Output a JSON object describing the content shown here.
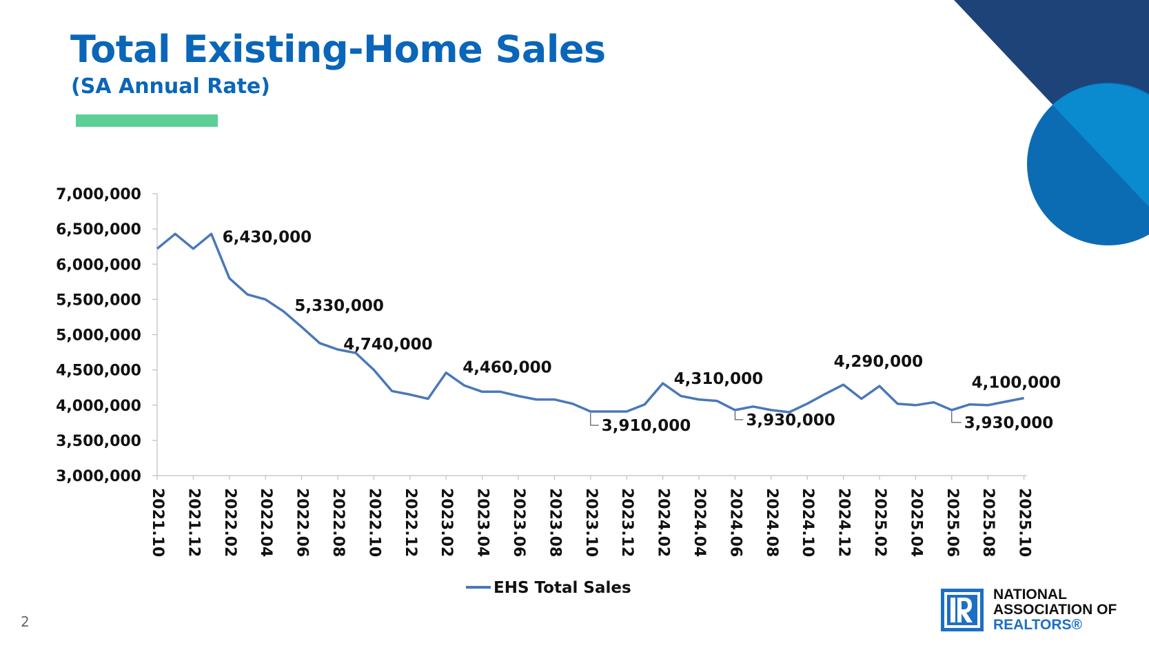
{
  "header": {
    "title": "Total Existing-Home Sales",
    "subtitle": "(SA Annual Rate)"
  },
  "footer": {
    "page_number": "2",
    "logo_line1": "NATIONAL",
    "logo_line2": "ASSOCIATION OF",
    "logo_line3": "REALTORS®"
  },
  "colors": {
    "title": "#0a66b8",
    "accent_bar": "#5ccf97",
    "series_line": "#4a78b8",
    "deco_navy": "#1d4379",
    "deco_blue": "#0c6cb3",
    "deco_light": "#0a8bd0"
  },
  "chart_data": {
    "type": "line",
    "title": "Total Existing-Home Sales",
    "subtitle": "(SA Annual Rate)",
    "xlabel": "",
    "ylabel": "",
    "ylim": [
      3000000,
      7000000
    ],
    "y_ticks": [
      3000000,
      3500000,
      4000000,
      4500000,
      5000000,
      5500000,
      6000000,
      6500000,
      7000000
    ],
    "y_tick_labels": [
      "3,000,000",
      "3,500,000",
      "4,000,000",
      "4,500,000",
      "5,000,000",
      "5,500,000",
      "6,000,000",
      "6,500,000",
      "7,000,000"
    ],
    "x_tick_labels": [
      "2021.10",
      "2021.12",
      "2022.02",
      "2022.04",
      "2022.06",
      "2022.08",
      "2022.10",
      "2022.12",
      "2023.02",
      "2023.04",
      "2023.06",
      "2023.08",
      "2023.10",
      "2023.12",
      "2024.02",
      "2024.04",
      "2024.06",
      "2024.08",
      "2024.10",
      "2024.12",
      "2025.02",
      "2025.04",
      "2025.06",
      "2025.08",
      "2025.10"
    ],
    "legend": {
      "position": "bottom",
      "entries": [
        "EHS Total Sales"
      ]
    },
    "series": [
      {
        "name": "EHS Total Sales",
        "values": [
          6220000,
          6430000,
          6220000,
          6430000,
          5800000,
          5570000,
          5500000,
          5330000,
          5110000,
          4880000,
          4790000,
          4740000,
          4500000,
          4200000,
          4150000,
          4090000,
          4460000,
          4280000,
          4190000,
          4190000,
          4130000,
          4080000,
          4080000,
          4020000,
          3910000,
          3910000,
          3910000,
          4010000,
          4310000,
          4130000,
          4080000,
          4060000,
          3930000,
          3980000,
          3930000,
          3900000,
          4020000,
          4160000,
          4290000,
          4090000,
          4270000,
          4020000,
          4000000,
          4040000,
          3930000,
          4010000,
          4000000,
          4050000,
          4100000
        ]
      }
    ],
    "annotations": [
      {
        "label": "6,430,000",
        "index": 3,
        "value": 6430000
      },
      {
        "label": "5,330,000",
        "index": 7,
        "value": 5330000
      },
      {
        "label": "4,740,000",
        "index": 11,
        "value": 4740000
      },
      {
        "label": "4,460,000",
        "index": 16,
        "value": 4460000
      },
      {
        "label": "3,910,000",
        "index": 24,
        "value": 3910000
      },
      {
        "label": "4,310,000",
        "index": 28,
        "value": 4310000
      },
      {
        "label": "3,930,000",
        "index": 32,
        "value": 3930000
      },
      {
        "label": "4,290,000",
        "index": 38,
        "value": 4290000
      },
      {
        "label": "3,930,000",
        "index": 44,
        "value": 3930000
      },
      {
        "label": "4,100,000",
        "index": 48,
        "value": 4100000
      }
    ]
  }
}
